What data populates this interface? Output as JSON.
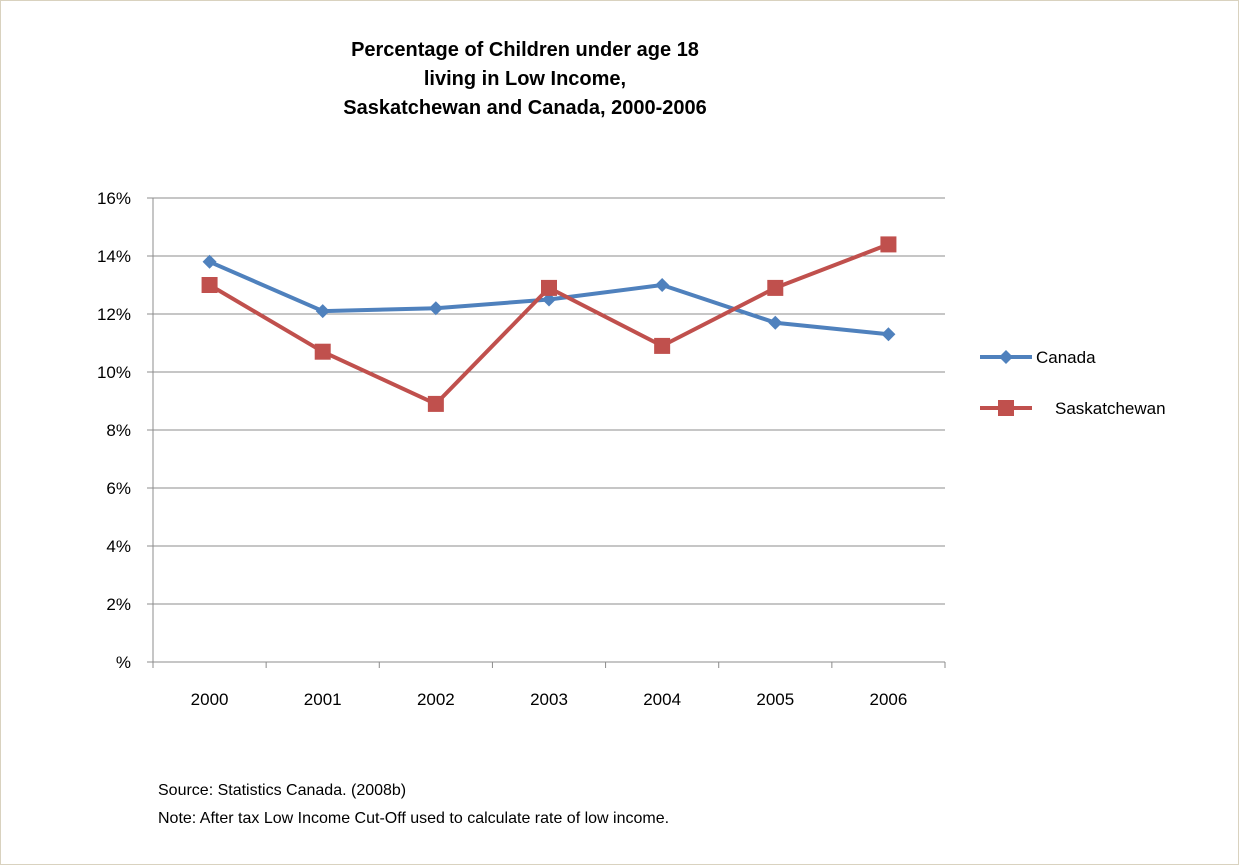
{
  "chart_data": {
    "type": "line",
    "title_lines": [
      "Percentage of Children under age 18",
      "living in Low Income,",
      "Saskatchewan and Canada, 2000-2006"
    ],
    "categories": [
      "2000",
      "2001",
      "2002",
      "2003",
      "2004",
      "2005",
      "2006"
    ],
    "y_tick_labels": [
      "%",
      "2%",
      "4%",
      "6%",
      "8%",
      "10%",
      "12%",
      "14%",
      "16%"
    ],
    "ylim": [
      0,
      16
    ],
    "grid": true,
    "legend_position": "right",
    "series": [
      {
        "name": "Canada",
        "color": "#4f81bd",
        "marker": "diamond",
        "values": [
          13.8,
          12.1,
          12.2,
          12.5,
          13.0,
          11.7,
          11.3
        ]
      },
      {
        "name": "Saskatchewan",
        "color": "#c0504d",
        "marker": "square",
        "values": [
          13.0,
          10.7,
          8.9,
          12.9,
          10.9,
          12.9,
          14.4
        ]
      }
    ]
  },
  "notes": {
    "source": "Source: Statistics Canada. (2008b)",
    "note": "Note: After tax Low Income Cut-Off used to calculate rate of low income."
  }
}
